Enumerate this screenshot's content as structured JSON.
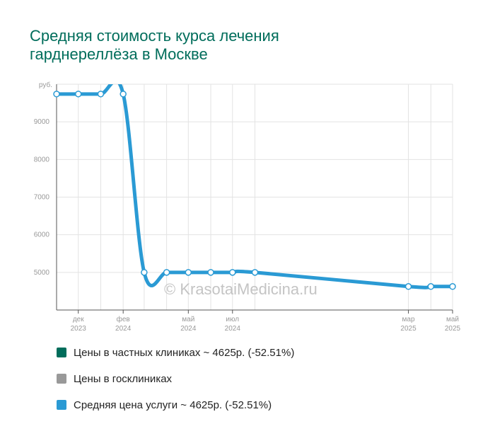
{
  "title": {
    "line1": "Средняя стоимость курса лечения",
    "line2": "гарднереллёза в Москве"
  },
  "watermark": "© KrasotaiMedicina.ru",
  "chart_data": {
    "type": "line",
    "y_unit": "руб.",
    "ylim": [
      4000,
      10000
    ],
    "yticks": [
      5000,
      6000,
      7000,
      8000,
      9000
    ],
    "xlim": [
      "2023-11-01",
      "2025-05-01"
    ],
    "x_ticks": [
      {
        "date": "2023-12-01",
        "month": "дек",
        "year": "2023"
      },
      {
        "date": "2024-02-01",
        "month": "фев",
        "year": "2024"
      },
      {
        "date": "2024-05-01",
        "month": "май",
        "year": "2024"
      },
      {
        "date": "2024-07-01",
        "month": "июл",
        "year": "2024"
      },
      {
        "date": "2025-03-01",
        "month": "мар",
        "year": "2025"
      },
      {
        "date": "2025-05-01",
        "month": "май",
        "year": "2025"
      }
    ],
    "grid": true,
    "series": [
      {
        "name": "Средняя цена услуги ~ 4625р. (-52.51%)",
        "color": "#2a9ad4",
        "x": [
          "2023-11-01",
          "2023-12-01",
          "2024-01-01",
          "2024-02-01",
          "2024-03-01",
          "2024-04-01",
          "2024-05-01",
          "2024-06-01",
          "2024-07-01",
          "2024-08-01",
          "2025-03-01",
          "2025-04-01",
          "2025-05-01"
        ],
        "y": [
          9740,
          9740,
          9740,
          9740,
          5000,
          5000,
          5000,
          5000,
          5000,
          5000,
          4625,
          4625,
          4625
        ]
      }
    ]
  },
  "legend": {
    "items": [
      {
        "label": "Цены в частных клиниках ~ 4625р. (-52.51%)",
        "color": "#006d5b"
      },
      {
        "label": "Цены в госклиниках",
        "color": "#999999"
      },
      {
        "label": "Средняя цена услуги ~ 4625р. (-52.51%)",
        "color": "#2a9ad4"
      }
    ]
  }
}
